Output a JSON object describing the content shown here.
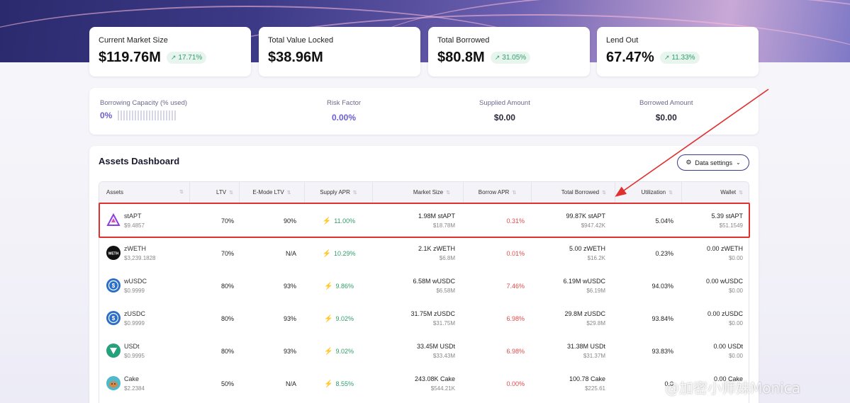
{
  "stats": [
    {
      "label": "Current Market Size",
      "value": "$119.76M",
      "change": "17.71%"
    },
    {
      "label": "Total Value Locked",
      "value": "$38.96M",
      "change": ""
    },
    {
      "label": "Total Borrowed",
      "value": "$80.8M",
      "change": "31.05%"
    },
    {
      "label": "Lend Out",
      "value": "67.47%",
      "change": "11.33%"
    }
  ],
  "summary": {
    "capacity_label": "Borrowing Capacity (% used)",
    "capacity_value": "0%",
    "capacity_fraction": 0,
    "risk_label": "Risk Factor",
    "risk_value": "0.00%",
    "supplied_label": "Supplied Amount",
    "supplied_value": "$0.00",
    "borrowed_label": "Borrowed Amount",
    "borrowed_value": "$0.00"
  },
  "dashboard": {
    "title": "Assets Dashboard",
    "settings_label": "Data settings",
    "columns": [
      "Assets",
      "LTV",
      "E-Mode LTV",
      "Supply APR",
      "Market Size",
      "Borrow APR",
      "Total Borrowed",
      "Utilization",
      "Wallet"
    ],
    "rows": [
      {
        "name": "stAPT",
        "price": "$9.4857",
        "ltv": "70%",
        "emode": "90%",
        "supply_apr": "11.00%",
        "market": "1.98M stAPT",
        "market_usd": "$18.78M",
        "borrow_apr": "0.31%",
        "borrowed": "99.87K stAPT",
        "borrowed_usd": "$947.42K",
        "util": "5.04%",
        "wallet": "5.39 stAPT",
        "wallet_usd": "$51.1549",
        "icon": "stapt-icon",
        "color": "#ffffff"
      },
      {
        "name": "zWETH",
        "price": "$3,239.1828",
        "ltv": "70%",
        "emode": "N/A",
        "supply_apr": "10.29%",
        "market": "2.1K zWETH",
        "market_usd": "$6.8M",
        "borrow_apr": "0.01%",
        "borrowed": "5.00 zWETH",
        "borrowed_usd": "$16.2K",
        "util": "0.23%",
        "wallet": "0.00 zWETH",
        "wallet_usd": "$0.00",
        "icon": "zweth-icon",
        "color": "#111111"
      },
      {
        "name": "wUSDC",
        "price": "$0.9999",
        "ltv": "80%",
        "emode": "93%",
        "supply_apr": "9.86%",
        "market": "6.58M wUSDC",
        "market_usd": "$6.58M",
        "borrow_apr": "7.46%",
        "borrowed": "6.19M wUSDC",
        "borrowed_usd": "$6.19M",
        "util": "94.03%",
        "wallet": "0.00 wUSDC",
        "wallet_usd": "$0.00",
        "icon": "wusdc-icon",
        "color": "#2b6fc6"
      },
      {
        "name": "zUSDC",
        "price": "$0.9999",
        "ltv": "80%",
        "emode": "93%",
        "supply_apr": "9.02%",
        "market": "31.75M zUSDC",
        "market_usd": "$31.75M",
        "borrow_apr": "6.98%",
        "borrowed": "29.8M zUSDC",
        "borrowed_usd": "$29.8M",
        "util": "93.84%",
        "wallet": "0.00 zUSDC",
        "wallet_usd": "$0.00",
        "icon": "zusdc-icon",
        "color": "#2b6fc6"
      },
      {
        "name": "USDt",
        "price": "$0.9995",
        "ltv": "80%",
        "emode": "93%",
        "supply_apr": "9.02%",
        "market": "33.45M USDt",
        "market_usd": "$33.43M",
        "borrow_apr": "6.98%",
        "borrowed": "31.38M USDt",
        "borrowed_usd": "$31.37M",
        "util": "93.83%",
        "wallet": "0.00 USDt",
        "wallet_usd": "$0.00",
        "icon": "usdt-icon",
        "color": "#26a17b"
      },
      {
        "name": "Cake",
        "price": "$2.2384",
        "ltv": "50%",
        "emode": "N/A",
        "supply_apr": "8.55%",
        "market": "243.08K Cake",
        "market_usd": "$544.21K",
        "borrow_apr": "0.00%",
        "borrowed": "100.78 Cake",
        "borrowed_usd": "$225.61",
        "util": "0.0",
        "wallet": "0.00 Cake",
        "wallet_usd": "",
        "icon": "cake-icon",
        "color": "#4fb8c9"
      }
    ]
  },
  "watermark": "@加密小师妹Monica"
}
